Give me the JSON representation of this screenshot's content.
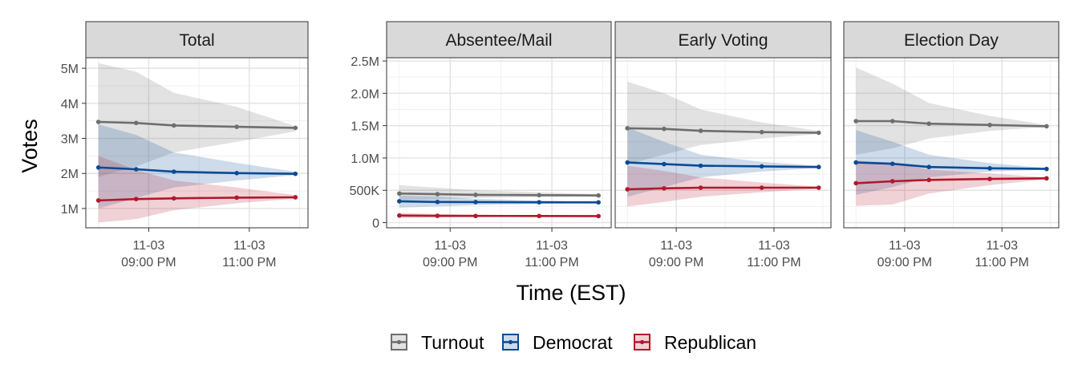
{
  "chart_data": {
    "type": "line",
    "ylabel": "Votes",
    "xlabel": "Time (EST)",
    "x_ticks": [
      "11-03\n09:00 PM",
      "11-03\n11:00 PM"
    ],
    "x": [
      "20:00",
      "20:45",
      "21:30",
      "22:45",
      "23:55"
    ],
    "legend": {
      "position": "bottom"
    },
    "grid": true,
    "colors": {
      "Turnout": "#6e6e6e",
      "Democrat": "#0b4a94",
      "Republican": "#b2182b"
    },
    "panels": [
      {
        "title": "Total",
        "yaxis": {
          "ticks": [
            1000000,
            2000000,
            3000000,
            4000000,
            5000000
          ],
          "tick_labels": [
            "1M",
            "2M",
            "3M",
            "4M",
            "5M"
          ],
          "ylim": [
            450000,
            5300000
          ]
        },
        "series": [
          {
            "name": "Turnout",
            "values": [
              3470000,
              3440000,
              3370000,
              3330000,
              3300000
            ],
            "lower": [
              1900000,
              2200000,
              2600000,
              2900000,
              3200000
            ],
            "upper": [
              5150000,
              4900000,
              4300000,
              3900000,
              3350000
            ]
          },
          {
            "name": "Democrat",
            "values": [
              2170000,
              2120000,
              2050000,
              2010000,
              1990000
            ],
            "lower": [
              1000000,
              1300000,
              1600000,
              1800000,
              1950000
            ],
            "upper": [
              3400000,
              3100000,
              2600000,
              2300000,
              2050000
            ]
          },
          {
            "name": "Republican",
            "values": [
              1230000,
              1270000,
              1290000,
              1310000,
              1320000
            ],
            "lower": [
              600000,
              700000,
              950000,
              1150000,
              1280000
            ],
            "upper": [
              2500000,
              2100000,
              1800000,
              1600000,
              1380000
            ]
          }
        ]
      },
      {
        "title": "Absentee/Mail",
        "yaxis": {
          "ticks": [
            0,
            500000,
            1000000,
            1500000,
            2000000,
            2500000
          ],
          "tick_labels": [
            "0",
            "500K",
            "1.0M",
            "1.5M",
            "2.0M",
            "2.5M"
          ],
          "ylim": [
            -80000,
            2550000
          ]
        },
        "series": [
          {
            "name": "Turnout",
            "values": [
              450000,
              440000,
              430000,
              425000,
              420000
            ],
            "lower": [
              340000,
              360000,
              380000,
              395000,
              410000
            ],
            "upper": [
              580000,
              540000,
              500000,
              470000,
              440000
            ]
          },
          {
            "name": "Democrat",
            "values": [
              330000,
              320000,
              318000,
              315000,
              313000
            ],
            "lower": [
              230000,
              250000,
              270000,
              290000,
              305000
            ],
            "upper": [
              420000,
              400000,
              370000,
              340000,
              320000
            ]
          },
          {
            "name": "Republican",
            "values": [
              110000,
              105000,
              103000,
              102000,
              101000
            ],
            "lower": [
              70000,
              80000,
              88000,
              95000,
              99000
            ],
            "upper": [
              150000,
              135000,
              120000,
              110000,
              104000
            ]
          }
        ]
      },
      {
        "title": "Early Voting",
        "yaxis": {
          "ticks": [
            0,
            500000,
            1000000,
            1500000,
            2000000,
            2500000
          ],
          "tick_labels": [
            "0",
            "500K",
            "1.0M",
            "1.5M",
            "2.0M",
            "2.5M"
          ],
          "ylim": [
            -80000,
            2550000
          ]
        },
        "series": [
          {
            "name": "Turnout",
            "values": [
              1460000,
              1450000,
              1420000,
              1400000,
              1390000
            ],
            "lower": [
              900000,
              1050000,
              1200000,
              1300000,
              1370000
            ],
            "upper": [
              2180000,
              2000000,
              1750000,
              1550000,
              1420000
            ]
          },
          {
            "name": "Democrat",
            "values": [
              930000,
              905000,
              880000,
              870000,
              860000
            ],
            "lower": [
              400000,
              550000,
              700000,
              790000,
              845000
            ],
            "upper": [
              1470000,
              1250000,
              1050000,
              940000,
              880000
            ]
          },
          {
            "name": "Republican",
            "values": [
              515000,
              530000,
              540000,
              540000,
              540000
            ],
            "lower": [
              250000,
              320000,
              400000,
              470000,
              525000
            ],
            "upper": [
              880000,
              800000,
              700000,
              620000,
              555000
            ]
          }
        ]
      },
      {
        "title": "Election Day",
        "yaxis": {
          "ticks": [
            0,
            500000,
            1000000,
            1500000,
            2000000,
            2500000
          ],
          "tick_labels": [
            "0",
            "500K",
            "1.0M",
            "1.5M",
            "2.0M",
            "2.5M"
          ],
          "ylim": [
            -80000,
            2550000
          ]
        },
        "series": [
          {
            "name": "Turnout",
            "values": [
              1570000,
              1570000,
              1530000,
              1510000,
              1490000
            ],
            "lower": [
              1050000,
              1150000,
              1300000,
              1420000,
              1480000
            ],
            "upper": [
              2400000,
              2150000,
              1850000,
              1650000,
              1510000
            ]
          },
          {
            "name": "Democrat",
            "values": [
              930000,
              910000,
              860000,
              840000,
              830000
            ],
            "lower": [
              430000,
              550000,
              700000,
              790000,
              820000
            ],
            "upper": [
              1430000,
              1250000,
              1050000,
              920000,
              845000
            ]
          },
          {
            "name": "Republican",
            "values": [
              610000,
              640000,
              660000,
              675000,
              685000
            ],
            "lower": [
              260000,
              280000,
              450000,
              580000,
              670000
            ],
            "upper": [
              960000,
              930000,
              820000,
              760000,
              700000
            ]
          }
        ]
      }
    ]
  }
}
